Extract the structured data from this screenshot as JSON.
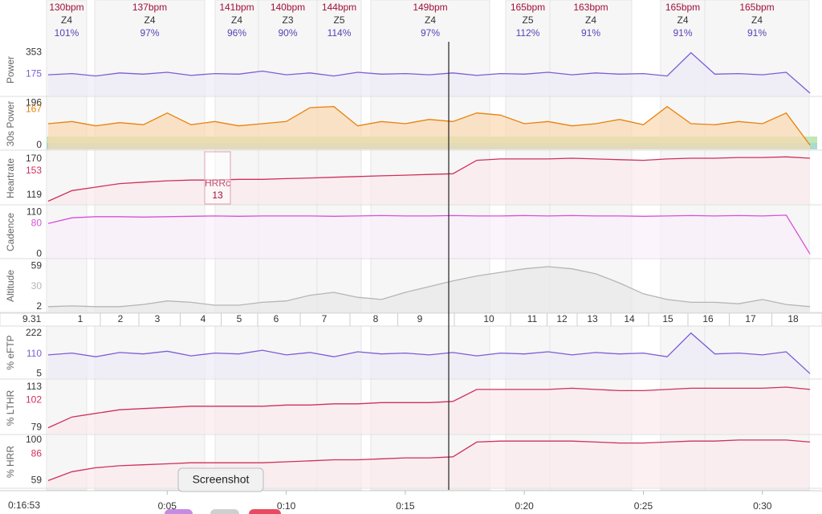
{
  "intervals": [
    {
      "bpm": "130bpm",
      "zone": "Z4",
      "pct": "101%"
    },
    {
      "bpm": "137bpm",
      "zone": "Z4",
      "pct": "97%"
    },
    {
      "bpm": "141bpm",
      "zone": "Z4",
      "pct": "96%"
    },
    {
      "bpm": "140bpm",
      "zone": "Z3",
      "pct": "90%"
    },
    {
      "bpm": "144bpm",
      "zone": "Z5",
      "pct": "114%"
    },
    {
      "bpm": "149bpm",
      "zone": "Z4",
      "pct": "97%"
    },
    {
      "bpm": "165bpm",
      "zone": "Z5",
      "pct": "112%"
    },
    {
      "bpm": "163bpm",
      "zone": "Z4",
      "pct": "91%"
    },
    {
      "bpm": "165bpm",
      "zone": "Z4",
      "pct": "91%"
    },
    {
      "bpm": "165bpm",
      "zone": "Z4",
      "pct": "91%"
    }
  ],
  "x": [
    0,
    1,
    2,
    3,
    4,
    5,
    6,
    7,
    8,
    9,
    10,
    11,
    12,
    13,
    14,
    15,
    16,
    17,
    18,
    19,
    20,
    21,
    22,
    23,
    24,
    25,
    26,
    27,
    28,
    29,
    30,
    31,
    32
  ],
  "xlim": [
    0,
    32.3
  ],
  "panels": [
    {
      "label": "Power",
      "ylim": [
        0,
        420
      ],
      "yticks": [
        353,
        175
      ],
      "color": "#7c5cd6",
      "fill": "#ecebf6",
      "values": [
        170,
        180,
        160,
        185,
        175,
        190,
        165,
        180,
        175,
        200,
        170,
        185,
        160,
        190,
        175,
        180,
        170,
        185,
        165,
        180,
        175,
        190,
        170,
        185,
        175,
        180,
        160,
        350,
        175,
        180,
        170,
        190,
        20
      ]
    },
    {
      "label": "30s Power",
      "ylim": [
        -20,
        220
      ],
      "yticks": [
        196,
        167,
        0
      ],
      "color": "#e8820c",
      "fill": "#fbd9b0",
      "values": [
        100,
        110,
        90,
        105,
        95,
        150,
        95,
        110,
        90,
        100,
        110,
        175,
        180,
        90,
        110,
        100,
        120,
        110,
        150,
        140,
        100,
        110,
        90,
        100,
        120,
        95,
        180,
        100,
        95,
        110,
        100,
        150,
        0
      ]
    },
    {
      "label": "Heartrate",
      "ylim": [
        106,
        179
      ],
      "yticks": [
        170,
        153,
        119
      ],
      "color": "#d0305a",
      "fill": "#fbe9ee",
      "values": [
        110,
        125,
        130,
        135,
        137,
        139,
        140,
        140,
        141,
        141,
        142,
        143,
        144,
        145,
        146,
        147,
        148,
        149,
        168,
        170,
        170,
        170,
        171,
        170,
        169,
        168,
        170,
        171,
        171,
        172,
        172,
        173,
        171
      ]
    },
    {
      "label": "Cadence",
      "ylim": [
        -10,
        125
      ],
      "yticks": [
        110,
        80,
        0
      ],
      "color": "#d94fd9",
      "fill": "#fbf0fb",
      "values": [
        80,
        95,
        98,
        98,
        97,
        98,
        99,
        100,
        99,
        100,
        100,
        100,
        99,
        100,
        101,
        100,
        100,
        101,
        100,
        100,
        101,
        100,
        101,
        100,
        100,
        99,
        100,
        101,
        100,
        101,
        100,
        102,
        0
      ]
    },
    {
      "label": "Altitude",
      "ylim": [
        -5,
        67
      ],
      "yticks": [
        59,
        30,
        2
      ],
      "color": "#b5b5b5",
      "fill": "#e8e8e8",
      "values": [
        2,
        3,
        2,
        2,
        5,
        10,
        8,
        4,
        4,
        8,
        10,
        18,
        22,
        15,
        12,
        22,
        30,
        38,
        45,
        50,
        55,
        58,
        55,
        48,
        35,
        20,
        12,
        8,
        8,
        6,
        12,
        5,
        2
      ]
    },
    {
      "label": "% eFTP",
      "ylim": [
        -20,
        255
      ],
      "yticks": [
        222,
        110,
        5
      ],
      "color": "#7c5cd6",
      "fill": "#ecebf6",
      "values": [
        105,
        115,
        95,
        118,
        110,
        125,
        100,
        115,
        110,
        130,
        105,
        118,
        95,
        122,
        110,
        115,
        105,
        118,
        100,
        115,
        110,
        122,
        105,
        118,
        110,
        115,
        95,
        222,
        110,
        115,
        105,
        122,
        5
      ]
    },
    {
      "label": "% LTHR",
      "ylim": [
        74,
        117
      ],
      "yticks": [
        113,
        102,
        79
      ],
      "color": "#d0305a",
      "fill": "#fbe9ee",
      "values": [
        79,
        88,
        91,
        94,
        95,
        96,
        97,
        97,
        97,
        97,
        98,
        98,
        99,
        99,
        100,
        100,
        100,
        101,
        111,
        111,
        111,
        111,
        112,
        111,
        110,
        110,
        111,
        112,
        112,
        112,
        112,
        113,
        111
      ]
    },
    {
      "label": "% HRR",
      "ylim": [
        52,
        104
      ],
      "yticks": [
        100,
        86,
        59
      ],
      "color": "#d0305a",
      "fill": "#fbe9ee",
      "values": [
        59,
        68,
        72,
        74,
        75,
        76,
        77,
        77,
        77,
        77,
        78,
        79,
        80,
        80,
        81,
        82,
        82,
        83,
        98,
        99,
        99,
        99,
        99,
        98,
        97,
        97,
        98,
        99,
        99,
        100,
        100,
        100,
        98
      ]
    }
  ],
  "laps": {
    "distance": "9.31",
    "labels": [
      "1",
      "2",
      "3",
      "4",
      "5",
      "6",
      "7",
      "8",
      "9",
      "10",
      "11",
      "12",
      "13",
      "14",
      "15",
      "16",
      "17",
      "18"
    ]
  },
  "time_axis": {
    "cursor": "0:16:53",
    "ticks": [
      {
        "value": 5,
        "label": "0:05"
      },
      {
        "value": 10,
        "label": "0:10"
      },
      {
        "value": 15,
        "label": "0:15"
      },
      {
        "value": 20,
        "label": "0:20"
      },
      {
        "value": 25,
        "label": "0:25"
      },
      {
        "value": 30,
        "label": "0:30"
      }
    ]
  },
  "hrr_box": {
    "label": "HRRc",
    "value": 13
  },
  "tooltip": "Screenshot"
}
